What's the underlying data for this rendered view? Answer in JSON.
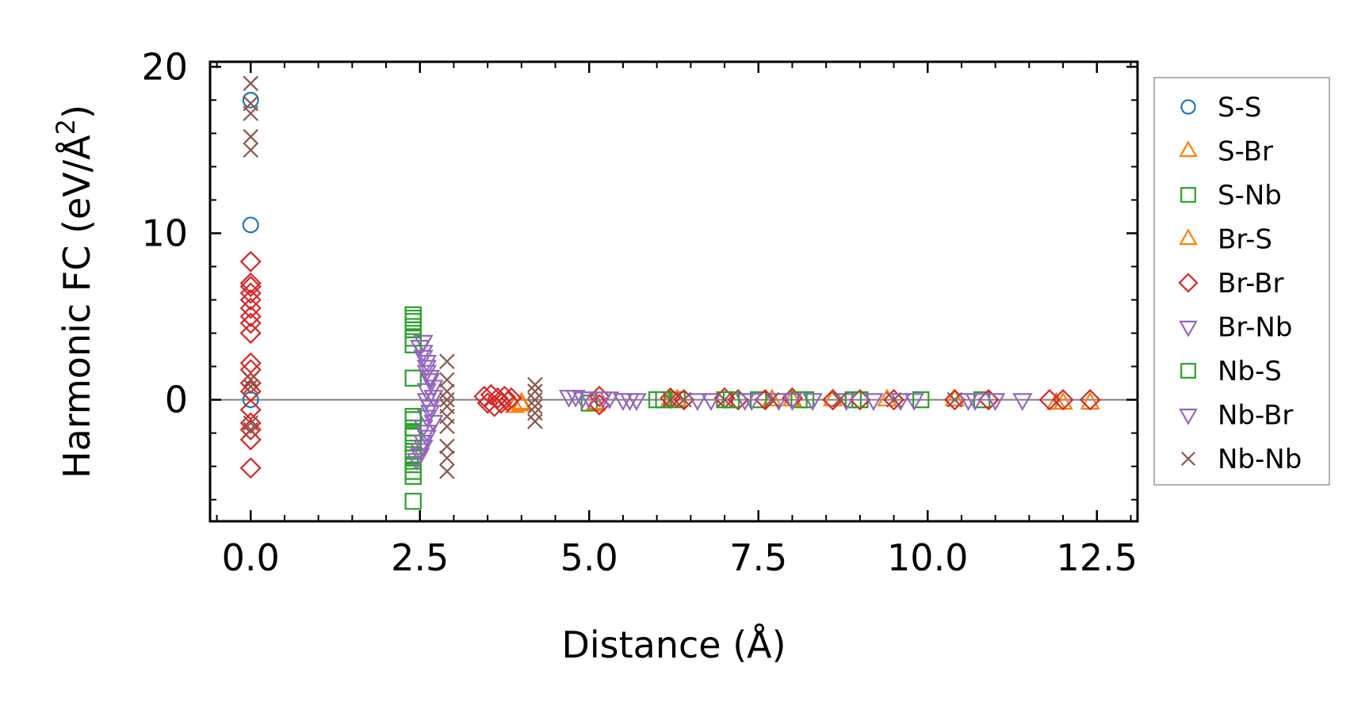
{
  "chart_data": {
    "type": "scatter",
    "title": "",
    "xlabel": "Distance (Å)",
    "ylabel": "Harmonic FC (eV/Å2)",
    "ylabel_parts": {
      "main": "Harmonic FC (eV/Å",
      "sup": "2",
      "close": ")"
    },
    "xlim": [
      -0.6,
      13.1
    ],
    "ylim": [
      -7.3,
      20.3
    ],
    "xticks": [
      0.0,
      2.5,
      5.0,
      7.5,
      10.0,
      12.5
    ],
    "xtick_labels": [
      "0.0",
      "2.5",
      "5.0",
      "7.5",
      "10.0",
      "12.5"
    ],
    "yticks": [
      0,
      10,
      20
    ],
    "ytick_labels": [
      "0",
      "10",
      "20"
    ],
    "x_minor_step": 0.5,
    "y_minor_step": 2,
    "zero_line": true,
    "legend_position": "outside-right",
    "series": [
      {
        "name": "S-S",
        "marker": "circle",
        "color": "#1f77b4",
        "points": [
          [
            0,
            18
          ],
          [
            0,
            10.5
          ],
          [
            0,
            0
          ]
        ]
      },
      {
        "name": "S-Br",
        "marker": "triangle-up",
        "color": "#ff7f0e",
        "points": [
          [
            3.9,
            -0.4
          ],
          [
            4.0,
            -0.3
          ],
          [
            5.1,
            -0.3
          ],
          [
            6.2,
            0
          ],
          [
            7.7,
            0
          ],
          [
            8.6,
            0
          ],
          [
            10.4,
            0
          ],
          [
            11.9,
            -0.2
          ],
          [
            12.4,
            -0.2
          ]
        ]
      },
      {
        "name": "S-Nb",
        "marker": "square",
        "color": "#2ca02c",
        "points": [
          [
            2.4,
            5.1
          ],
          [
            2.4,
            4.7
          ],
          [
            2.4,
            4.2
          ],
          [
            2.4,
            3.3
          ],
          [
            2.4,
            1.3
          ],
          [
            2.4,
            -1.2
          ],
          [
            2.4,
            -1.7
          ],
          [
            2.4,
            -2.2
          ],
          [
            2.4,
            -2.6
          ],
          [
            2.4,
            -3.1
          ],
          [
            2.4,
            -3.5
          ],
          [
            2.4,
            -3.9
          ],
          [
            2.4,
            -4.6
          ],
          [
            2.4,
            -6.1
          ],
          [
            5.0,
            -0.2
          ],
          [
            6.0,
            0
          ],
          [
            6.3,
            0
          ],
          [
            7.0,
            0
          ],
          [
            7.5,
            0
          ],
          [
            8.2,
            0
          ],
          [
            9.0,
            0
          ],
          [
            9.9,
            0
          ],
          [
            10.8,
            0
          ]
        ]
      },
      {
        "name": "Br-S",
        "marker": "triangle-up",
        "color": "#ff7f0e",
        "points": [
          [
            4.0,
            -0.2
          ],
          [
            5.1,
            -0.2
          ],
          [
            6.3,
            0
          ],
          [
            8.0,
            0
          ],
          [
            9.4,
            0
          ],
          [
            12.0,
            -0.2
          ]
        ]
      },
      {
        "name": "Br-Br",
        "marker": "diamond",
        "color": "#d62728",
        "points": [
          [
            0,
            8.3
          ],
          [
            0,
            7.0
          ],
          [
            0,
            6.8
          ],
          [
            0,
            6.4
          ],
          [
            0,
            6.0
          ],
          [
            0,
            5.5
          ],
          [
            0,
            5.0
          ],
          [
            0,
            4.6
          ],
          [
            0,
            4.0
          ],
          [
            0,
            2.2
          ],
          [
            0,
            1.8
          ],
          [
            0,
            1.0
          ],
          [
            0,
            0.5
          ],
          [
            0,
            -0.6
          ],
          [
            0,
            -1.4
          ],
          [
            0,
            -1.8
          ],
          [
            0,
            -2.4
          ],
          [
            0,
            -4.1
          ],
          [
            3.45,
            0.2
          ],
          [
            3.5,
            -0.2
          ],
          [
            3.55,
            0.3
          ],
          [
            3.6,
            -0.4
          ],
          [
            3.65,
            0.1
          ],
          [
            3.7,
            -0.2
          ],
          [
            3.75,
            0.2
          ],
          [
            3.8,
            -0.1
          ],
          [
            3.85,
            0.1
          ],
          [
            5.15,
            0.2
          ],
          [
            5.15,
            -0.3
          ],
          [
            6.2,
            0.1
          ],
          [
            6.4,
            0
          ],
          [
            7.0,
            0.1
          ],
          [
            7.2,
            0
          ],
          [
            7.6,
            0
          ],
          [
            8.0,
            0.1
          ],
          [
            8.6,
            0
          ],
          [
            9.0,
            0
          ],
          [
            9.5,
            0
          ],
          [
            10.4,
            0
          ],
          [
            10.9,
            0
          ],
          [
            11.8,
            0
          ],
          [
            12.0,
            0
          ],
          [
            12.4,
            0
          ]
        ]
      },
      {
        "name": "Br-Nb",
        "marker": "triangle-down",
        "color": "#9467bd",
        "points": [
          [
            2.55,
            3.5
          ],
          [
            2.55,
            2.9
          ],
          [
            2.6,
            2.3
          ],
          [
            2.6,
            1.7
          ],
          [
            2.65,
            1.2
          ],
          [
            2.6,
            0.6
          ],
          [
            2.7,
            0.2
          ],
          [
            2.65,
            -0.4
          ],
          [
            2.6,
            -1.0
          ],
          [
            2.55,
            -1.6
          ],
          [
            2.6,
            -2.2
          ],
          [
            2.55,
            -2.8
          ],
          [
            2.5,
            -3.3
          ],
          [
            4.7,
            0.2
          ],
          [
            4.9,
            0.1
          ],
          [
            5.2,
            0.1
          ],
          [
            5.5,
            0
          ],
          [
            5.7,
            0
          ],
          [
            6.6,
            0
          ],
          [
            7.3,
            0
          ],
          [
            7.8,
            0
          ],
          [
            8.3,
            0
          ],
          [
            9.2,
            0
          ],
          [
            9.8,
            0
          ],
          [
            10.7,
            0
          ],
          [
            11.4,
            0
          ]
        ]
      },
      {
        "name": "Nb-S",
        "marker": "square",
        "color": "#2ca02c",
        "points": [
          [
            2.4,
            4.9
          ],
          [
            2.4,
            4.4
          ],
          [
            2.4,
            3.7
          ],
          [
            2.4,
            -1.0
          ],
          [
            2.4,
            -2.0
          ],
          [
            2.4,
            -3.3
          ],
          [
            2.4,
            -4.3
          ],
          [
            6.1,
            0
          ],
          [
            7.1,
            0
          ],
          [
            8.1,
            0
          ],
          [
            8.9,
            0
          ]
        ]
      },
      {
        "name": "Nb-Br",
        "marker": "triangle-down",
        "color": "#9467bd",
        "points": [
          [
            2.5,
            3.2
          ],
          [
            2.55,
            2.6
          ],
          [
            2.6,
            2.0
          ],
          [
            2.65,
            1.4
          ],
          [
            2.7,
            0.8
          ],
          [
            2.6,
            0.0
          ],
          [
            2.65,
            -0.7
          ],
          [
            2.7,
            -1.3
          ],
          [
            2.6,
            -1.9
          ],
          [
            2.55,
            -2.5
          ],
          [
            2.5,
            -3.0
          ],
          [
            2.45,
            -3.6
          ],
          [
            4.8,
            0.2
          ],
          [
            5.0,
            0.1
          ],
          [
            5.3,
            0.1
          ],
          [
            5.6,
            0
          ],
          [
            6.8,
            0
          ],
          [
            7.4,
            0
          ],
          [
            8.0,
            0
          ],
          [
            8.8,
            0
          ],
          [
            9.6,
            0
          ],
          [
            10.6,
            0
          ],
          [
            11.0,
            0
          ]
        ]
      },
      {
        "name": "Nb-Nb",
        "marker": "x",
        "color": "#8c564b",
        "points": [
          [
            0,
            19
          ],
          [
            0,
            17.8
          ],
          [
            0,
            17.2
          ],
          [
            0,
            15.8
          ],
          [
            0,
            15.0
          ],
          [
            0,
            1.2
          ],
          [
            0,
            0.8
          ],
          [
            0,
            -1.4
          ],
          [
            0,
            -1.8
          ],
          [
            2.9,
            2.3
          ],
          [
            2.9,
            1.2
          ],
          [
            2.9,
            0.5
          ],
          [
            2.9,
            0
          ],
          [
            2.9,
            -0.4
          ],
          [
            2.9,
            -1.0
          ],
          [
            2.9,
            -1.6
          ],
          [
            2.9,
            -2.8
          ],
          [
            2.9,
            -3.5
          ],
          [
            2.9,
            -4.3
          ],
          [
            4.2,
            0.9
          ],
          [
            4.2,
            0.5
          ],
          [
            4.2,
            0
          ],
          [
            4.2,
            -0.4
          ],
          [
            4.2,
            -0.8
          ],
          [
            4.2,
            -1.3
          ],
          [
            6.2,
            0
          ],
          [
            6.4,
            0
          ],
          [
            7.0,
            0
          ],
          [
            7.7,
            0
          ],
          [
            8.7,
            0
          ],
          [
            9.5,
            0
          ],
          [
            10.4,
            0
          ]
        ]
      }
    ]
  }
}
